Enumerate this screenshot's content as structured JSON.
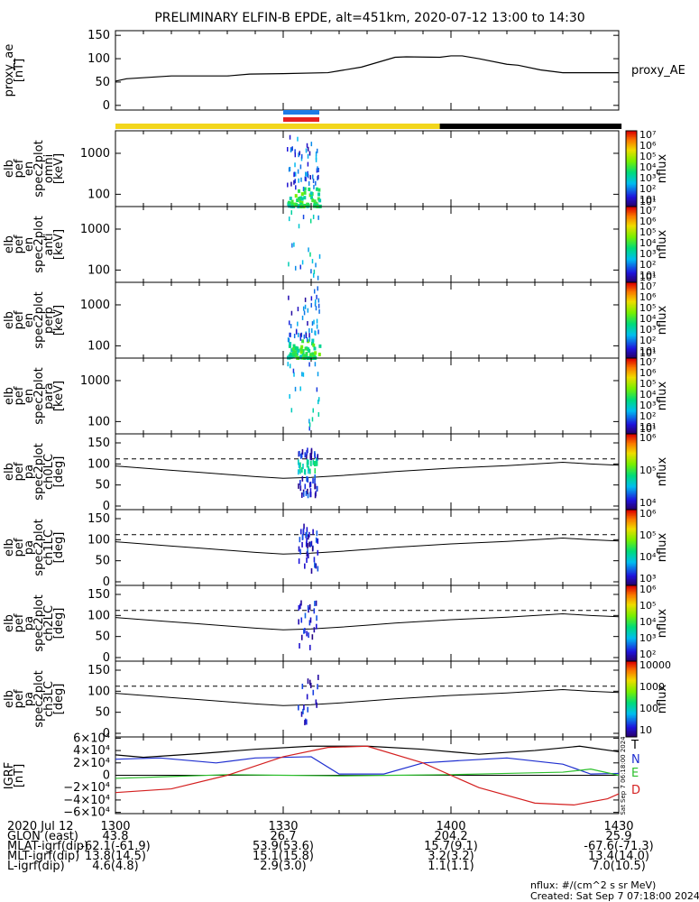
{
  "title": "PRELIMINARY ELFIN-B EPDE, alt=451km, 2020-07-12 13:00 to 14:30",
  "colors": {
    "plot_line": "#000000",
    "bar_yellow": "#f2d61c",
    "bar_black": "#000000",
    "marker_blue": "#1e7be6",
    "marker_red": "#e62020",
    "grf_T": "#000000",
    "grf_N": "#1f2fd0",
    "grf_E": "#2cbf2c",
    "grf_D": "#d41f1f"
  },
  "chart_data": [
    {
      "type": "line",
      "panel": "proxy_ae",
      "ylabel": [
        "proxy_ae",
        "[nT]"
      ],
      "series_name": "proxy_AE",
      "yticks": [
        "150",
        "100",
        "50",
        "0"
      ],
      "ytick_values": [
        150,
        100,
        50,
        0
      ],
      "ylim": [
        -10,
        160
      ],
      "xlim": [
        0,
        90
      ],
      "x": [
        0,
        2,
        10,
        20,
        24,
        30,
        38,
        40,
        44,
        50,
        52,
        58,
        60,
        62,
        65,
        70,
        72,
        76,
        80,
        90
      ],
      "y": [
        52,
        57,
        63,
        63,
        67,
        68,
        70,
        74,
        82,
        103,
        104,
        103,
        106,
        106,
        100,
        88,
        86,
        76,
        70,
        70
      ]
    },
    {
      "type": "heatmap",
      "panel": "omni",
      "ylabel": [
        "elb",
        "pef",
        "en",
        "spec2plot",
        "omni",
        "[keV]"
      ],
      "yticks": [
        "1000",
        "100"
      ],
      "ytick_values": [
        1000,
        100
      ],
      "cbar_label": "nflux",
      "cbar_ticks": [
        "10⁷",
        "10⁶",
        "10⁵",
        "10⁴",
        "10³",
        "10²",
        "10¹"
      ],
      "cbar_ticks2": [
        "10¹"
      ]
    },
    {
      "type": "heatmap",
      "panel": "anti",
      "ylabel": [
        "elb",
        "pef",
        "en",
        "spec2plot",
        "anti",
        "[keV]"
      ],
      "yticks": [
        "1000",
        "100"
      ],
      "ytick_values": [
        1000,
        100
      ],
      "cbar_label": "nflux",
      "cbar_ticks": [
        "10⁷",
        "10⁶",
        "10⁵",
        "10⁴",
        "10³",
        "10²",
        "10¹"
      ],
      "cbar_ticks2": [
        "10¹"
      ]
    },
    {
      "type": "heatmap",
      "panel": "perp",
      "ylabel": [
        "elb",
        "pef",
        "en",
        "spec2plot",
        "perp",
        "[keV]"
      ],
      "yticks": [
        "1000",
        "100"
      ],
      "ytick_values": [
        1000,
        100
      ],
      "cbar_label": "nflux",
      "cbar_ticks": [
        "10⁷",
        "10⁶",
        "10⁵",
        "10⁴",
        "10³",
        "10²",
        "10¹"
      ],
      "cbar_ticks2": [
        "10¹"
      ]
    },
    {
      "type": "heatmap",
      "panel": "para",
      "ylabel": [
        "elb",
        "pef",
        "en",
        "spec2plot",
        "para",
        "[keV]"
      ],
      "yticks": [
        "1000",
        "100"
      ],
      "ytick_values": [
        1000,
        100
      ],
      "cbar_label": "nflux",
      "cbar_ticks": [
        "10⁷",
        "10⁶",
        "10⁵",
        "10⁴",
        "10³",
        "10²",
        "10¹"
      ],
      "cbar_ticks2": [
        "10¹"
      ]
    },
    {
      "type": "heatmap",
      "panel": "ch0LC",
      "ylabel": [
        "elb",
        "pef",
        "pa",
        "spec2plot",
        "ch0LC",
        "[deg]"
      ],
      "yticks": [
        "150",
        "100",
        "50",
        "0"
      ],
      "ytick_values": [
        150,
        100,
        50,
        0
      ],
      "cbar_label": "nflux",
      "cbar_ticks": [
        "10⁶",
        "10⁵",
        "10⁴"
      ],
      "cbar_ticks2": []
    },
    {
      "type": "heatmap",
      "panel": "ch1LC",
      "ylabel": [
        "elb",
        "pef",
        "pa",
        "spec2plot",
        "ch1LC",
        "[deg]"
      ],
      "yticks": [
        "150",
        "100",
        "50",
        "0"
      ],
      "ytick_values": [
        150,
        100,
        50,
        0
      ],
      "cbar_label": "nflux",
      "cbar_ticks": [
        "10⁶",
        "10⁵",
        "10⁴",
        "10³"
      ],
      "cbar_ticks2": []
    },
    {
      "type": "heatmap",
      "panel": "ch2LC",
      "ylabel": [
        "elb",
        "pef",
        "pa",
        "spec2plot",
        "ch2LC",
        "[deg]"
      ],
      "yticks": [
        "150",
        "100",
        "50",
        "0"
      ],
      "ytick_values": [
        150,
        100,
        50,
        0
      ],
      "cbar_label": "nflux",
      "cbar_ticks": [
        "10⁶",
        "10⁵",
        "10⁴",
        "10³",
        "10²"
      ],
      "cbar_ticks2": []
    },
    {
      "type": "heatmap",
      "panel": "ch3LC",
      "ylabel": [
        "elb",
        "pef",
        "pa",
        "spec2plot",
        "ch3LC",
        "[deg]"
      ],
      "yticks": [
        "150",
        "100",
        "50",
        "0"
      ],
      "ytick_values": [
        150,
        100,
        50,
        0
      ],
      "cbar_label": "nflux",
      "cbar_ticks": [
        "10000",
        "1000",
        "100",
        "10"
      ],
      "cbar_ticks2": []
    },
    {
      "type": "line",
      "panel": "IGRF",
      "ylabel": [
        "IGRF",
        "[nT]"
      ],
      "yticks": [
        "6×10⁴",
        "4×10⁴",
        "2×10⁴",
        "0",
        "−2×10⁴",
        "−4×10⁴",
        "−6×10⁴"
      ],
      "ytick_values": [
        60000,
        40000,
        20000,
        0,
        -20000,
        -40000,
        -60000
      ],
      "legend": [
        "T",
        "N",
        "E",
        "D"
      ],
      "side_text": "Sat Sep  7 06:18:00 2024"
    }
  ],
  "x_axis": {
    "ticks": [
      "1300",
      "1330",
      "1400",
      "1430"
    ],
    "rows": [
      {
        "label": "2020 Jul 12",
        "values": [
          "1300",
          "1330",
          "1400",
          "1430"
        ]
      },
      {
        "label": "GLON (east)",
        "values": [
          "43.8",
          "26.7",
          "204.2",
          "25.9"
        ]
      },
      {
        "label": "MLAT-igrf(dip)",
        "values": [
          "-62.1(-61.9)",
          "53.9(53.6)",
          "15.7(9.1)",
          "-67.6(-71.3)"
        ]
      },
      {
        "label": "MLT-igrf(dip)",
        "values": [
          "13.8(14.5)",
          "15.1(15.8)",
          "3.2(3.2)",
          "13.4(14.0)"
        ]
      },
      {
        "label": "L-igrf(dip)",
        "values": [
          "4.6(4.8)",
          "2.9(3.0)",
          "1.1(1.1)",
          "7.0(10.5)"
        ]
      }
    ]
  },
  "footer": {
    "units": "nflux: #/(cm^2 s sr MeV)",
    "created": "Created: Sat Sep  7 07:18:00 2024"
  }
}
